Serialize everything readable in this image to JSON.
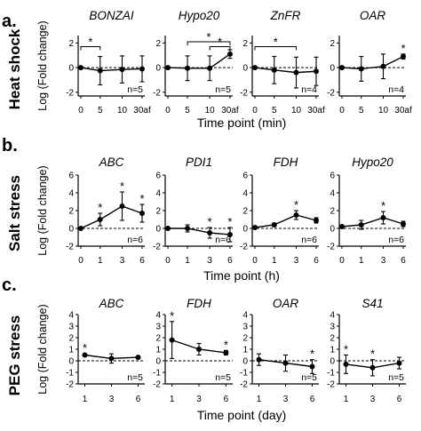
{
  "rows": [
    {
      "label": "a.",
      "side_label": "Heat shock",
      "ylabel": "Log (Fold change)",
      "xlabel": "Time point (min)",
      "yticks": [
        -2,
        0,
        2
      ],
      "ylim": [
        -2.3,
        2.6
      ],
      "xticks": [
        "0",
        "5",
        "10",
        "30af"
      ]
    },
    {
      "label": "b.",
      "side_label": "Salt stress",
      "ylabel": "Log (Fold change)",
      "xlabel": "Time point (h)",
      "yticks": [
        -2,
        0,
        2,
        4,
        6
      ],
      "ylim": [
        -2,
        6
      ],
      "xticks": [
        "0",
        "1",
        "3",
        "6"
      ]
    },
    {
      "label": "c.",
      "side_label": "PEG stress",
      "ylabel": "Log (Fold change)",
      "xlabel": "Time point (day)",
      "yticks": [
        -2,
        -1,
        0,
        1,
        2,
        3,
        4
      ],
      "ylim": [
        -2,
        4
      ],
      "xticks": [
        "1",
        "3",
        "6"
      ]
    }
  ],
  "chart_data": [
    {
      "type": "line",
      "row": 0,
      "gene": "BONZAI",
      "n_label": "n=5",
      "x": [
        "0",
        "5",
        "10",
        "30af"
      ],
      "values": [
        0,
        -0.25,
        -0.15,
        -0.1
      ],
      "err": [
        0,
        1.15,
        1.1,
        1.05
      ],
      "stars": [],
      "bracket": {
        "from": "0",
        "to": "5",
        "label": "*"
      }
    },
    {
      "type": "line",
      "row": 0,
      "gene": "Hypo20",
      "n_label": "n=5",
      "x": [
        "0",
        "5",
        "10",
        "30af"
      ],
      "values": [
        0,
        -0.05,
        -0.05,
        1.1
      ],
      "err": [
        0,
        1.0,
        1.0,
        0.35
      ],
      "stars": [],
      "brackets": [
        {
          "from": "5",
          "to": "30af",
          "label": "*",
          "level": 2.1
        },
        {
          "from": "10",
          "to": "30af",
          "label": "*",
          "level": 1.7
        }
      ]
    },
    {
      "type": "line",
      "row": 0,
      "gene": "ZnFR",
      "n_label": "n=4",
      "x": [
        "0",
        "5",
        "10",
        "30af"
      ],
      "values": [
        0,
        -0.2,
        -0.4,
        -0.3
      ],
      "err": [
        0,
        1.1,
        1.25,
        1.15
      ],
      "stars": [],
      "bracket": {
        "from": "0",
        "to": "10",
        "label": "*"
      }
    },
    {
      "type": "line",
      "row": 0,
      "gene": "OAR",
      "n_label": "n=4",
      "x": [
        "0",
        "5",
        "10",
        "30af"
      ],
      "values": [
        0,
        -0.1,
        0.1,
        0.9
      ],
      "err": [
        0,
        1.0,
        1.0,
        0.2
      ],
      "stars": [
        {
          "x": "30af",
          "label": "*"
        }
      ]
    },
    {
      "type": "line",
      "row": 1,
      "gene": "ABC",
      "n_label": "n=6",
      "x": [
        "0",
        "1",
        "3",
        "6"
      ],
      "values": [
        0,
        1.0,
        2.5,
        1.7
      ],
      "err": [
        0,
        0.7,
        1.6,
        1.0
      ],
      "stars": [
        {
          "x": "1",
          "label": "*"
        },
        {
          "x": "3",
          "label": "*"
        },
        {
          "x": "6",
          "label": "*"
        }
      ]
    },
    {
      "type": "line",
      "row": 1,
      "gene": "PDI1",
      "n_label": "n=6",
      "x": [
        "0",
        "1",
        "3",
        "6"
      ],
      "values": [
        0,
        0,
        -0.5,
        -0.7
      ],
      "err": [
        0,
        0.4,
        0.6,
        0.8
      ],
      "stars": [
        {
          "x": "3",
          "label": "*"
        },
        {
          "x": "6",
          "label": "*"
        }
      ]
    },
    {
      "type": "line",
      "row": 1,
      "gene": "FDH",
      "n_label": "n=6",
      "x": [
        "0",
        "1",
        "3",
        "6"
      ],
      "values": [
        0.1,
        0.4,
        1.5,
        0.9
      ],
      "err": [
        0,
        0.2,
        0.5,
        0.3
      ],
      "stars": [
        {
          "x": "3",
          "label": "*"
        }
      ]
    },
    {
      "type": "line",
      "row": 1,
      "gene": "Hypo20",
      "n_label": "n=6",
      "x": [
        "0",
        "1",
        "3",
        "6"
      ],
      "values": [
        0.2,
        0.4,
        1.2,
        0.5
      ],
      "err": [
        0,
        0.5,
        0.7,
        0.3
      ],
      "stars": [
        {
          "x": "3",
          "label": "*"
        }
      ]
    },
    {
      "type": "line",
      "row": 2,
      "gene": "ABC",
      "n_label": "n=5",
      "x": [
        "1",
        "3",
        "6"
      ],
      "values": [
        0.5,
        0.2,
        0.3
      ],
      "err": [
        0.1,
        0.4,
        0.1
      ],
      "stars": [
        {
          "x": "1",
          "label": "*"
        }
      ]
    },
    {
      "type": "line",
      "row": 2,
      "gene": "FDH",
      "n_label": "n=5",
      "x": [
        "1",
        "3",
        "6"
      ],
      "values": [
        1.8,
        1.0,
        0.7
      ],
      "err": [
        1.6,
        0.5,
        0.2
      ],
      "stars": [
        {
          "x": "1",
          "label": "*"
        },
        {
          "x": "6",
          "label": "*"
        }
      ]
    },
    {
      "type": "line",
      "row": 2,
      "gene": "OAR",
      "n_label": "n=5",
      "x": [
        "1",
        "3",
        "6"
      ],
      "values": [
        0.1,
        -0.2,
        -0.5
      ],
      "err": [
        0.5,
        0.7,
        0.6
      ],
      "stars": [
        {
          "x": "6",
          "label": "*"
        }
      ]
    },
    {
      "type": "line",
      "row": 2,
      "gene": "S41",
      "n_label": "n=5",
      "x": [
        "1",
        "3",
        "6"
      ],
      "values": [
        -0.3,
        -0.6,
        -0.2
      ],
      "err": [
        0.8,
        0.7,
        0.5
      ],
      "stars": [
        {
          "x": "1",
          "label": "*"
        },
        {
          "x": "3",
          "label": "*"
        }
      ]
    }
  ]
}
